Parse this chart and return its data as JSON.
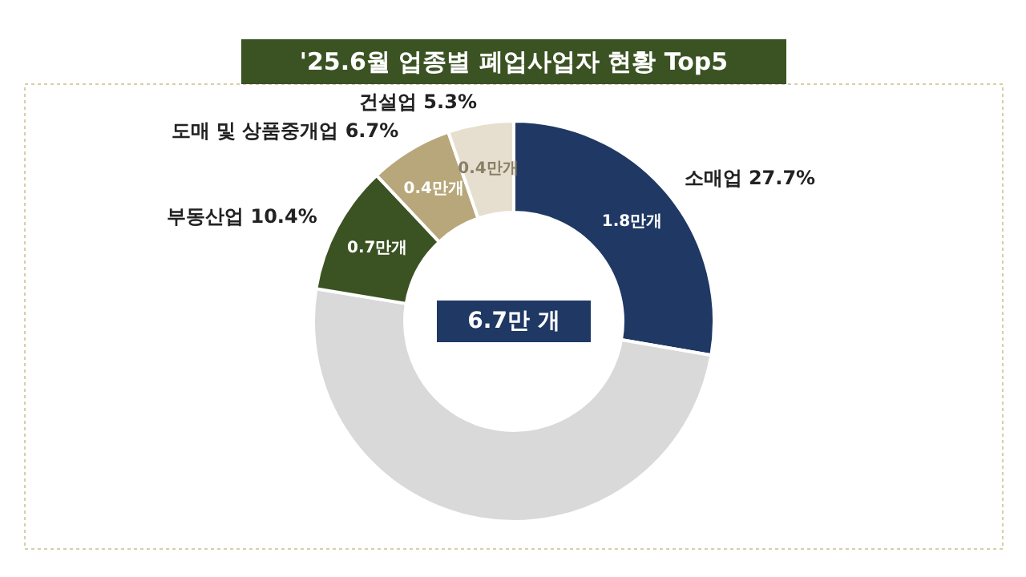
{
  "chart_data": {
    "type": "donut",
    "title": "'25.6월 업종별 폐업사업자 현황 Top5",
    "categories": [
      "소매업 27.7%",
      null,
      "부동산업 10.4%",
      "도매 및 상품중개업 6.7%",
      "건설업 5.3%"
    ],
    "values": [
      27.7,
      49.9,
      10.4,
      6.7,
      5.3
    ],
    "colors": [
      "#1f3864",
      "#d9d9d9",
      "#3b5323",
      "#b8a77a",
      "#e6dfcf"
    ],
    "annotations": [
      {
        "text": "1.8만개",
        "x": "소매업 27.7%"
      },
      {
        "text": "0.7만개",
        "x": "부동산업 10.4%"
      },
      {
        "text": "0.4만개",
        "x": "도매 및 상품중개업 6.7%"
      },
      {
        "text": "0.4만개",
        "x": "건설업 5.3%"
      },
      "6.7만 개"
    ]
  }
}
